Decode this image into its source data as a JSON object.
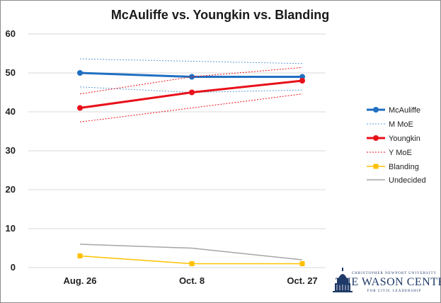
{
  "chart_data": {
    "type": "line",
    "title": "McAuliffe vs. Youngkin vs. Blanding",
    "categories": [
      "Aug. 26",
      "Oct. 8",
      "Oct. 27"
    ],
    "ylim": [
      0,
      60
    ],
    "yticks": [
      0,
      10,
      20,
      30,
      40,
      50,
      60
    ],
    "grid": true,
    "legend_position": "right",
    "series": [
      {
        "name": "McAuliffe",
        "values": [
          50,
          49,
          49
        ],
        "color": "#1f6fc1",
        "style": "solid",
        "marker": "circle"
      },
      {
        "name": "M MoE",
        "color": "#5b9bd5",
        "style": "dotted",
        "upper": [
          53.6,
          53.0,
          52.4
        ],
        "lower": [
          46.4,
          45.0,
          45.6
        ]
      },
      {
        "name": "Youngkin",
        "values": [
          41,
          45,
          48
        ],
        "color": "#e8101a",
        "style": "solid",
        "marker": "circle"
      },
      {
        "name": "Y MoE",
        "color": "#e8101a",
        "style": "dotted",
        "upper": [
          44.6,
          49.0,
          51.4
        ],
        "lower": [
          37.4,
          41.0,
          44.6
        ]
      },
      {
        "name": "Blanding",
        "values": [
          3,
          1,
          1
        ],
        "color": "#ffc000",
        "style": "solid",
        "marker": "square"
      },
      {
        "name": "Undecided",
        "values": [
          6,
          5,
          2
        ],
        "color": "#a6a6a6",
        "style": "solid",
        "marker": "none"
      }
    ]
  },
  "logo": {
    "top_line": "CHRISTOPHER NEWPORT UNIVERSITY",
    "name": "THE WASON CENTER",
    "tagline": "FOR CIVIC LEADERSHIP",
    "color": "#1f3a68"
  }
}
